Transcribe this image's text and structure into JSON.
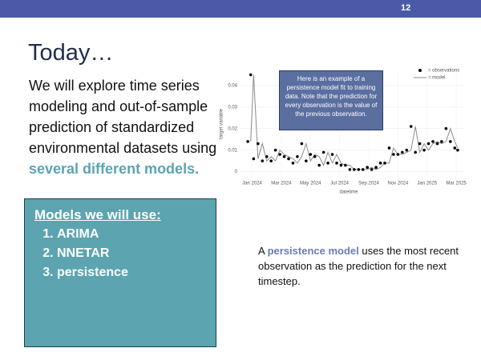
{
  "slide_number": "12",
  "title": "Today…",
  "body": {
    "text": "We will explore time series modeling and out-of-sample prediction of standardized environmental datasets using ",
    "highlight": "several different models."
  },
  "models_box": {
    "heading": "Models we will use:",
    "items": [
      "ARIMA",
      "NNETAR",
      "persistence"
    ]
  },
  "note": {
    "before": "A ",
    "highlight": "persistence model",
    "after": " uses the most recent observation as the prediction for the next timestep."
  },
  "chart_data": {
    "type": "scatter",
    "annotation": "Here is an example of a persistence model fit to training data. Note that the prediction for every observation is the value of the previous observation.",
    "x_label": "datetime",
    "y_label": "target variable",
    "x": [
      -0.3,
      -0.1,
      0.1,
      0.4,
      0.7,
      1.0,
      1.3,
      1.6,
      1.9,
      2.2,
      2.5,
      2.8,
      3.1,
      3.4,
      3.7,
      4.0,
      4.3,
      4.6,
      4.9,
      5.2,
      5.5,
      5.8,
      6.1,
      6.4,
      6.7,
      7.0,
      7.3,
      7.6,
      7.9,
      8.2,
      8.5,
      8.8,
      9.1,
      9.4,
      9.7,
      10.0,
      10.3,
      10.6,
      10.9,
      11.2,
      11.5,
      11.8,
      12.1,
      12.4,
      12.7,
      13.0,
      13.3,
      13.6,
      13.9,
      14.1
    ],
    "series": [
      {
        "name": "= observations",
        "color": "#000000",
        "values": [
          0.014,
          0.045,
          0.006,
          0.013,
          0.005,
          0.007,
          0.005,
          0.01,
          0.008,
          0.007,
          0.006,
          0.004,
          0.007,
          0.013,
          0.005,
          0.008,
          0.007,
          0.003,
          0.009,
          0.004,
          0.008,
          0.004,
          0.003,
          0.003,
          0.001,
          0.001,
          0.001,
          0.001,
          0.002,
          0.001,
          0.002,
          0.004,
          0.004,
          0.011,
          0.008,
          0.008,
          0.009,
          0.01,
          0.021,
          0.009,
          0.013,
          0.01,
          0.013,
          0.014,
          0.013,
          0.014,
          0.02,
          0.014,
          0.011,
          0.01
        ]
      },
      {
        "name": "= model",
        "color": "#8c8c8c",
        "values": [
          null,
          0.014,
          0.045,
          0.006,
          0.013,
          0.005,
          0.007,
          0.005,
          0.01,
          0.008,
          0.007,
          0.006,
          0.004,
          0.007,
          0.013,
          0.005,
          0.008,
          0.007,
          0.003,
          0.009,
          0.004,
          0.008,
          0.004,
          0.003,
          0.003,
          0.001,
          0.001,
          0.001,
          0.001,
          0.002,
          0.001,
          0.002,
          0.004,
          0.004,
          0.011,
          0.008,
          0.008,
          0.009,
          0.01,
          0.021,
          0.009,
          0.013,
          0.01,
          0.013,
          0.014,
          0.013,
          0.014,
          0.02,
          0.014,
          0.011
        ]
      }
    ],
    "xlim": [
      -0.8,
      14.6
    ],
    "ylim": [
      -0.002,
      0.047
    ],
    "xticks": [
      {
        "value": 0,
        "label": "Jan 2024"
      },
      {
        "value": 2,
        "label": "Mar 2024"
      },
      {
        "value": 4,
        "label": "May 2024"
      },
      {
        "value": 6,
        "label": "Jul 2024"
      },
      {
        "value": 8,
        "label": "Sep 2024"
      },
      {
        "value": 10,
        "label": "Nov 2024"
      },
      {
        "value": 12,
        "label": "Jan 2025"
      },
      {
        "value": 14,
        "label": "Mar 2025"
      }
    ],
    "yticks": [
      0,
      0.01,
      0.02,
      0.03,
      0.04
    ],
    "grid": true
  }
}
